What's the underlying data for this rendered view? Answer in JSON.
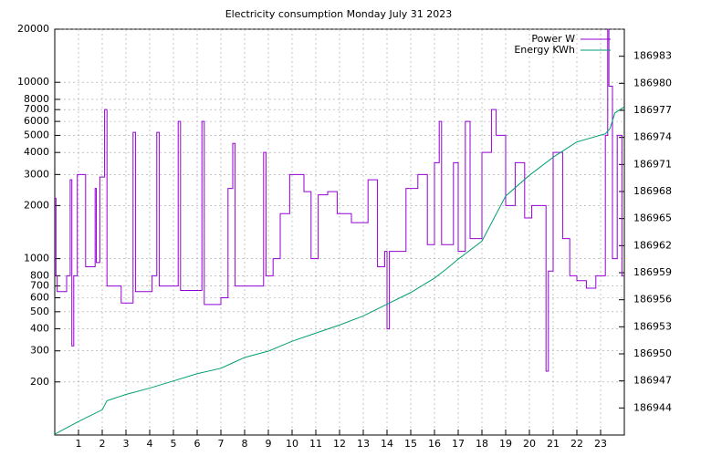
{
  "chart_data": {
    "type": "line",
    "title": "Electricity consumption Monday July 31 2023",
    "xlim": [
      0,
      24
    ],
    "xticks": [
      1,
      2,
      3,
      4,
      5,
      6,
      7,
      8,
      9,
      10,
      11,
      12,
      13,
      14,
      15,
      16,
      17,
      18,
      19,
      20,
      21,
      22,
      23
    ],
    "ylim": [
      100,
      20000
    ],
    "yticks": [
      200,
      300,
      400,
      500,
      600,
      700,
      800,
      1000,
      2000,
      3000,
      4000,
      5000,
      6000,
      7000,
      8000,
      10000,
      20000
    ],
    "y_log_scale": true,
    "y2lim": [
      186941,
      186986
    ],
    "y2ticks": [
      186944,
      186947,
      186950,
      186953,
      186956,
      186959,
      186962,
      186965,
      186968,
      186971,
      186974,
      186977,
      186980,
      186983
    ],
    "grid": true,
    "legend_position": "top-right",
    "series": [
      {
        "name": "Power W",
        "color": "#9400d3",
        "x": [
          0,
          0.05,
          0.05,
          0.1,
          0.1,
          0.5,
          0.5,
          0.65,
          0.65,
          0.72,
          0.72,
          0.8,
          0.8,
          0.95,
          0.95,
          1.3,
          1.3,
          1.7,
          1.7,
          1.75,
          1.75,
          1.9,
          1.9,
          2.1,
          2.1,
          2.2,
          2.2,
          2.8,
          2.8,
          3.3,
          3.3,
          3.4,
          3.4,
          4.1,
          4.1,
          4.3,
          4.3,
          4.4,
          4.4,
          5.2,
          5.2,
          5.3,
          5.3,
          6.2,
          6.2,
          6.3,
          6.3,
          7.0,
          7.0,
          7.3,
          7.3,
          7.5,
          7.5,
          7.6,
          7.6,
          8.8,
          8.8,
          8.9,
          8.9,
          9.2,
          9.2,
          9.5,
          9.5,
          9.9,
          9.9,
          10.5,
          10.5,
          10.8,
          10.8,
          11.1,
          11.1,
          11.5,
          11.5,
          11.9,
          11.9,
          12.5,
          12.5,
          13.2,
          13.2,
          13.6,
          13.6,
          13.9,
          13.9,
          14.0,
          14.0,
          14.1,
          14.1,
          14.8,
          14.8,
          15.3,
          15.3,
          15.7,
          15.7,
          16.0,
          16.0,
          16.2,
          16.2,
          16.3,
          16.3,
          16.8,
          16.8,
          17.0,
          17.0,
          17.3,
          17.3,
          17.5,
          17.5,
          18.0,
          18.0,
          18.4,
          18.4,
          18.6,
          18.6,
          19.0,
          19.0,
          19.4,
          19.4,
          19.8,
          19.8,
          20.1,
          20.1,
          20.7,
          20.7,
          20.8,
          20.8,
          21.0,
          21.0,
          21.4,
          21.4,
          21.7,
          21.7,
          22.0,
          22.0,
          22.4,
          22.4,
          22.8,
          22.8,
          23.2,
          23.2,
          23.3,
          23.3,
          23.35,
          23.35,
          23.5,
          23.5,
          23.7,
          23.7,
          23.9,
          23.9,
          24
        ],
        "values": [
          2200,
          2200,
          800,
          800,
          650,
          650,
          800,
          800,
          2800,
          2800,
          320,
          320,
          800,
          800,
          3000,
          3000,
          900,
          900,
          2500,
          2500,
          950,
          950,
          2900,
          2900,
          7000,
          7000,
          700,
          700,
          560,
          560,
          5200,
          5200,
          650,
          650,
          800,
          800,
          5200,
          5200,
          700,
          700,
          6000,
          6000,
          660,
          660,
          6000,
          6000,
          550,
          550,
          600,
          600,
          2500,
          2500,
          4500,
          4500,
          700,
          700,
          4000,
          4000,
          800,
          800,
          1000,
          1000,
          1800,
          1800,
          3000,
          3000,
          2400,
          2400,
          1000,
          1000,
          2300,
          2300,
          2400,
          2400,
          1800,
          1800,
          1600,
          1600,
          2800,
          2800,
          900,
          900,
          1100,
          1100,
          400,
          400,
          1100,
          1100,
          2500,
          2500,
          3000,
          3000,
          1200,
          1200,
          3500,
          3500,
          6000,
          6000,
          1200,
          1200,
          3500,
          3500,
          1100,
          1100,
          6000,
          6000,
          1300,
          1300,
          4000,
          4000,
          7000,
          7000,
          5000,
          5000,
          2000,
          2000,
          3500,
          3500,
          1700,
          1700,
          2000,
          2000,
          230,
          230,
          850,
          850,
          4000,
          4000,
          1300,
          1300,
          800,
          800,
          750,
          750,
          680,
          680,
          800,
          800,
          5000,
          5000,
          20000,
          20000,
          9500,
          9500,
          1000,
          1000,
          5000,
          5000,
          800,
          800
        ]
      },
      {
        "name": "Energy KWh",
        "color": "#009e73",
        "axis": "y2",
        "x": [
          0,
          1,
          2,
          2.2,
          3,
          4,
          5,
          6,
          7,
          7.5,
          8,
          9,
          10,
          11,
          12,
          13,
          14,
          15,
          16,
          16.5,
          17,
          18,
          19,
          20,
          21,
          22,
          23.2,
          23.4,
          23.6,
          24
        ],
        "values": [
          186941.1,
          186942.5,
          186943.8,
          186944.8,
          186945.5,
          186946.2,
          186947,
          186947.8,
          186948.4,
          186949,
          186949.6,
          186950.3,
          186951.4,
          186952.3,
          186953.2,
          186954.2,
          186955.5,
          186956.8,
          186958.4,
          186959.4,
          186960.5,
          186962.5,
          186967.5,
          186969.8,
          186971.8,
          186973.5,
          186974.4,
          186975,
          186976.7,
          186977.4
        ]
      }
    ]
  }
}
